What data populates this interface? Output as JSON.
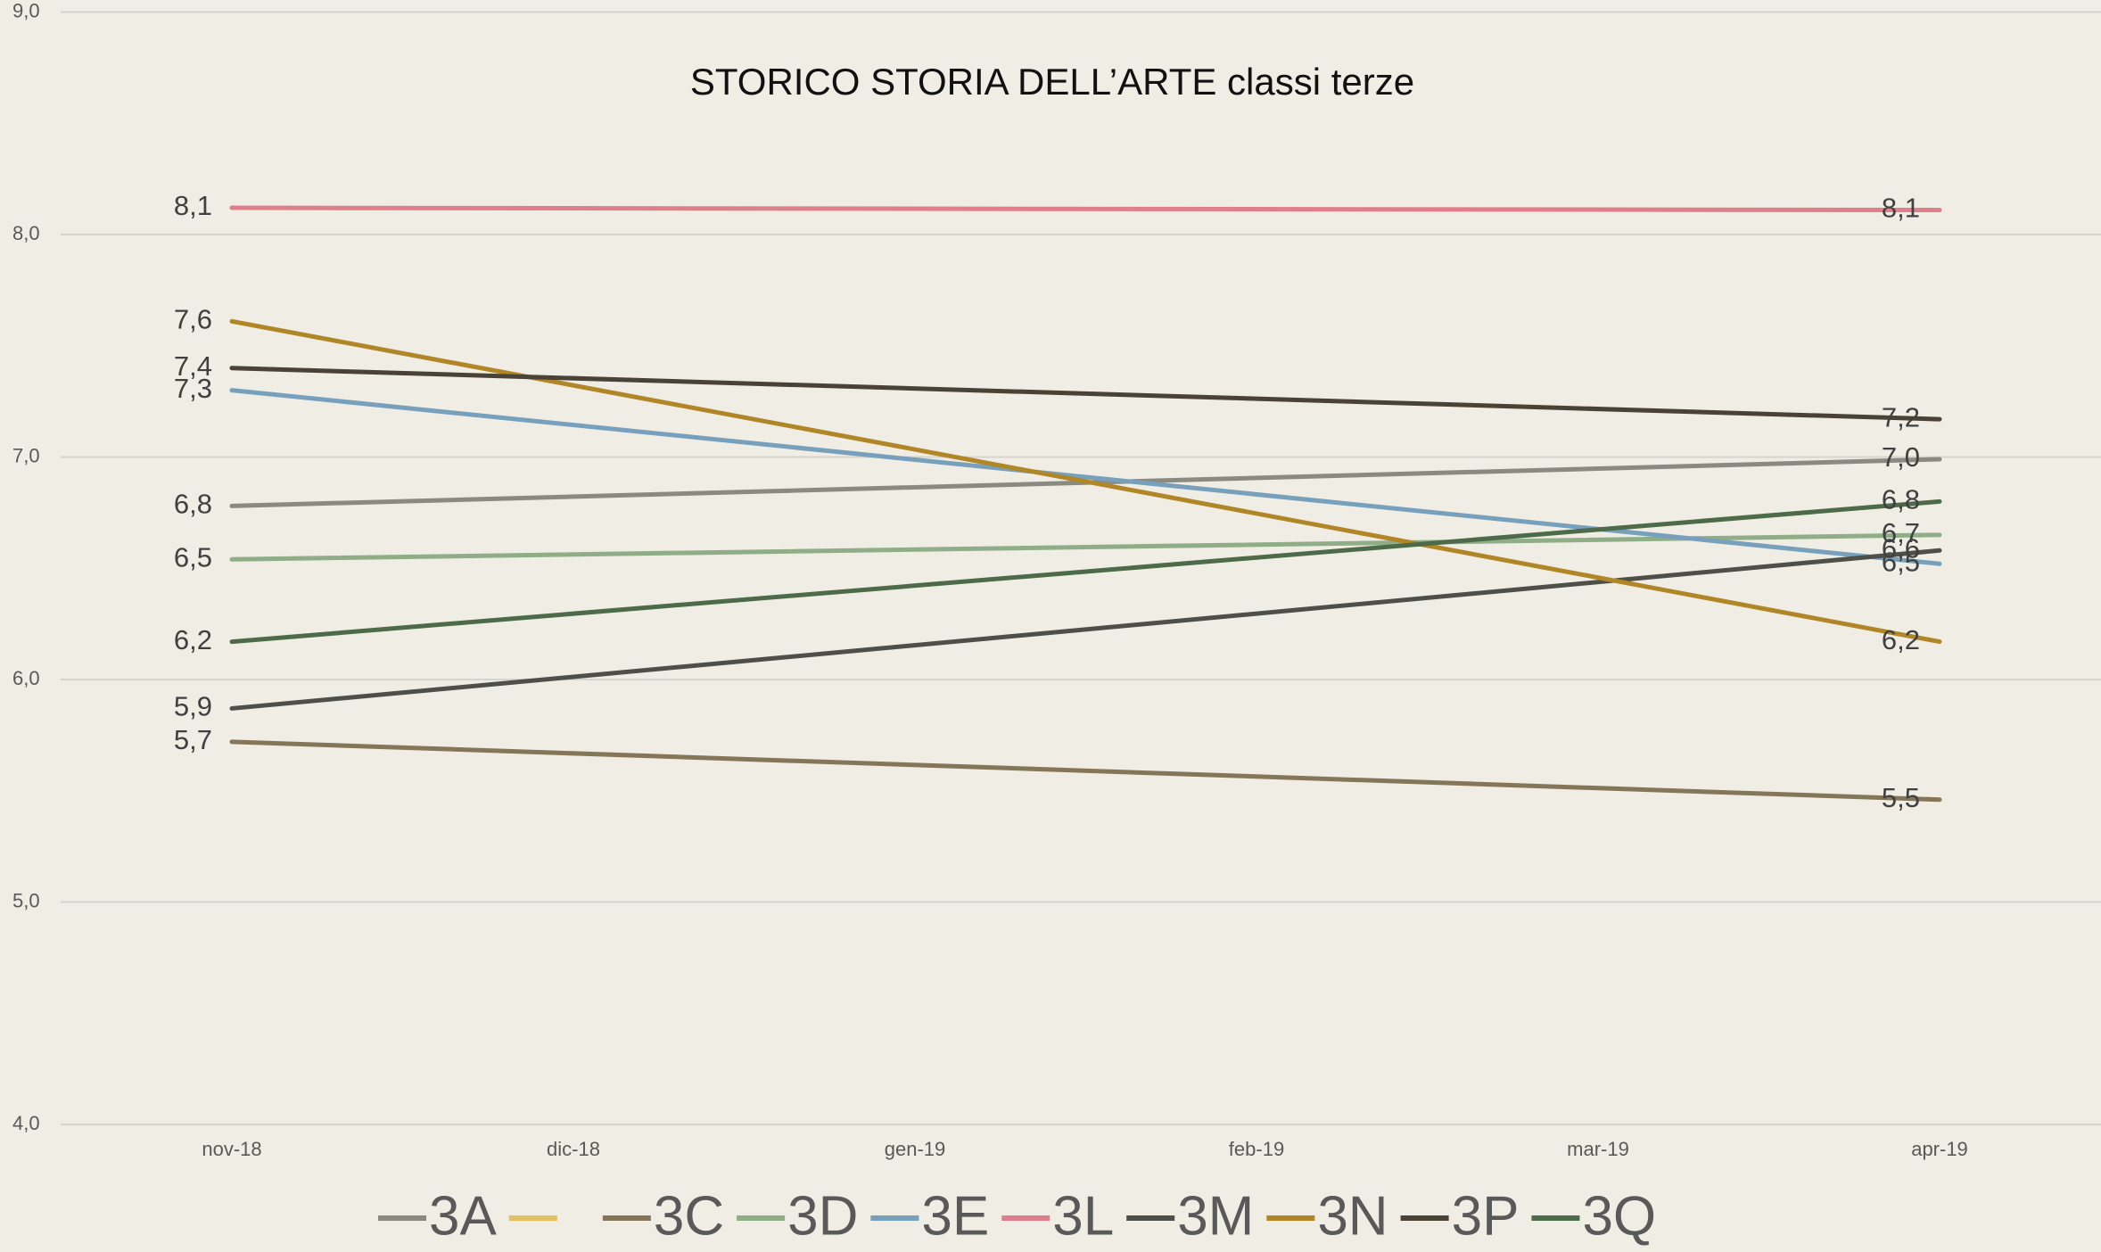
{
  "chart_data": {
    "type": "line",
    "title": "STORICO STORIA DELL’ARTE classi terze",
    "categories": [
      "nov-18",
      "dic-18",
      "gen-19",
      "feb-19",
      "mar-19",
      "apr-19"
    ],
    "connect_gaps": true,
    "grid": true,
    "legend": "bottom",
    "ylim": [
      4,
      9
    ],
    "yticks": [
      {
        "value": 4,
        "label": "4,0"
      },
      {
        "value": 5,
        "label": "5,0"
      },
      {
        "value": 6,
        "label": "6,0"
      },
      {
        "value": 7,
        "label": "7,0"
      },
      {
        "value": 8,
        "label": "8,0"
      },
      {
        "value": 9,
        "label": "9,0"
      }
    ],
    "series": [
      {
        "name": "3A",
        "color": "#8a8a80",
        "values": [
          6.78,
          null,
          null,
          null,
          null,
          6.99
        ],
        "value_labels": [
          "6,8",
          null,
          null,
          null,
          null,
          "7,0"
        ]
      },
      {
        "name": null,
        "color": "#e3c060",
        "values": [
          null,
          null,
          null,
          null,
          null,
          null
        ]
      },
      {
        "name": "3C",
        "color": "#857559",
        "values": [
          5.72,
          null,
          null,
          null,
          null,
          5.46
        ],
        "value_labels": [
          "5,7",
          null,
          null,
          null,
          null,
          "5,5"
        ]
      },
      {
        "name": "3D",
        "color": "#8fae88",
        "values": [
          6.54,
          null,
          null,
          null,
          null,
          6.65
        ],
        "value_labels": [
          "6,5",
          null,
          null,
          null,
          null,
          "6,7"
        ]
      },
      {
        "name": "3E",
        "color": "#76a0bb",
        "values": [
          7.3,
          null,
          null,
          null,
          null,
          6.52
        ],
        "value_labels": [
          "7,3",
          null,
          null,
          null,
          null,
          "6,5"
        ]
      },
      {
        "name": "3L",
        "color": "#e07f8c",
        "values": [
          8.12,
          null,
          null,
          null,
          null,
          8.11
        ],
        "value_labels": [
          "8,1",
          null,
          null,
          null,
          null,
          "8,1"
        ]
      },
      {
        "name": "3M",
        "color": "#4f4f4a",
        "values": [
          5.87,
          null,
          null,
          null,
          null,
          6.58
        ],
        "value_labels": [
          "5,9",
          null,
          null,
          null,
          null,
          "6,6"
        ]
      },
      {
        "name": "3N",
        "color": "#b08626",
        "values": [
          7.61,
          null,
          null,
          null,
          null,
          6.17
        ],
        "value_labels": [
          "7,6",
          null,
          null,
          null,
          null,
          "6,2"
        ]
      },
      {
        "name": "3P",
        "color": "#4a4236",
        "values": [
          7.4,
          null,
          null,
          null,
          null,
          7.17
        ],
        "value_labels": [
          "7,4",
          null,
          null,
          null,
          null,
          "7,2"
        ]
      },
      {
        "name": "3Q",
        "color": "#4d6b48",
        "values": [
          6.17,
          null,
          null,
          null,
          null,
          6.8
        ],
        "value_labels": [
          "6,2",
          null,
          null,
          null,
          null,
          "6,8"
        ]
      }
    ]
  }
}
